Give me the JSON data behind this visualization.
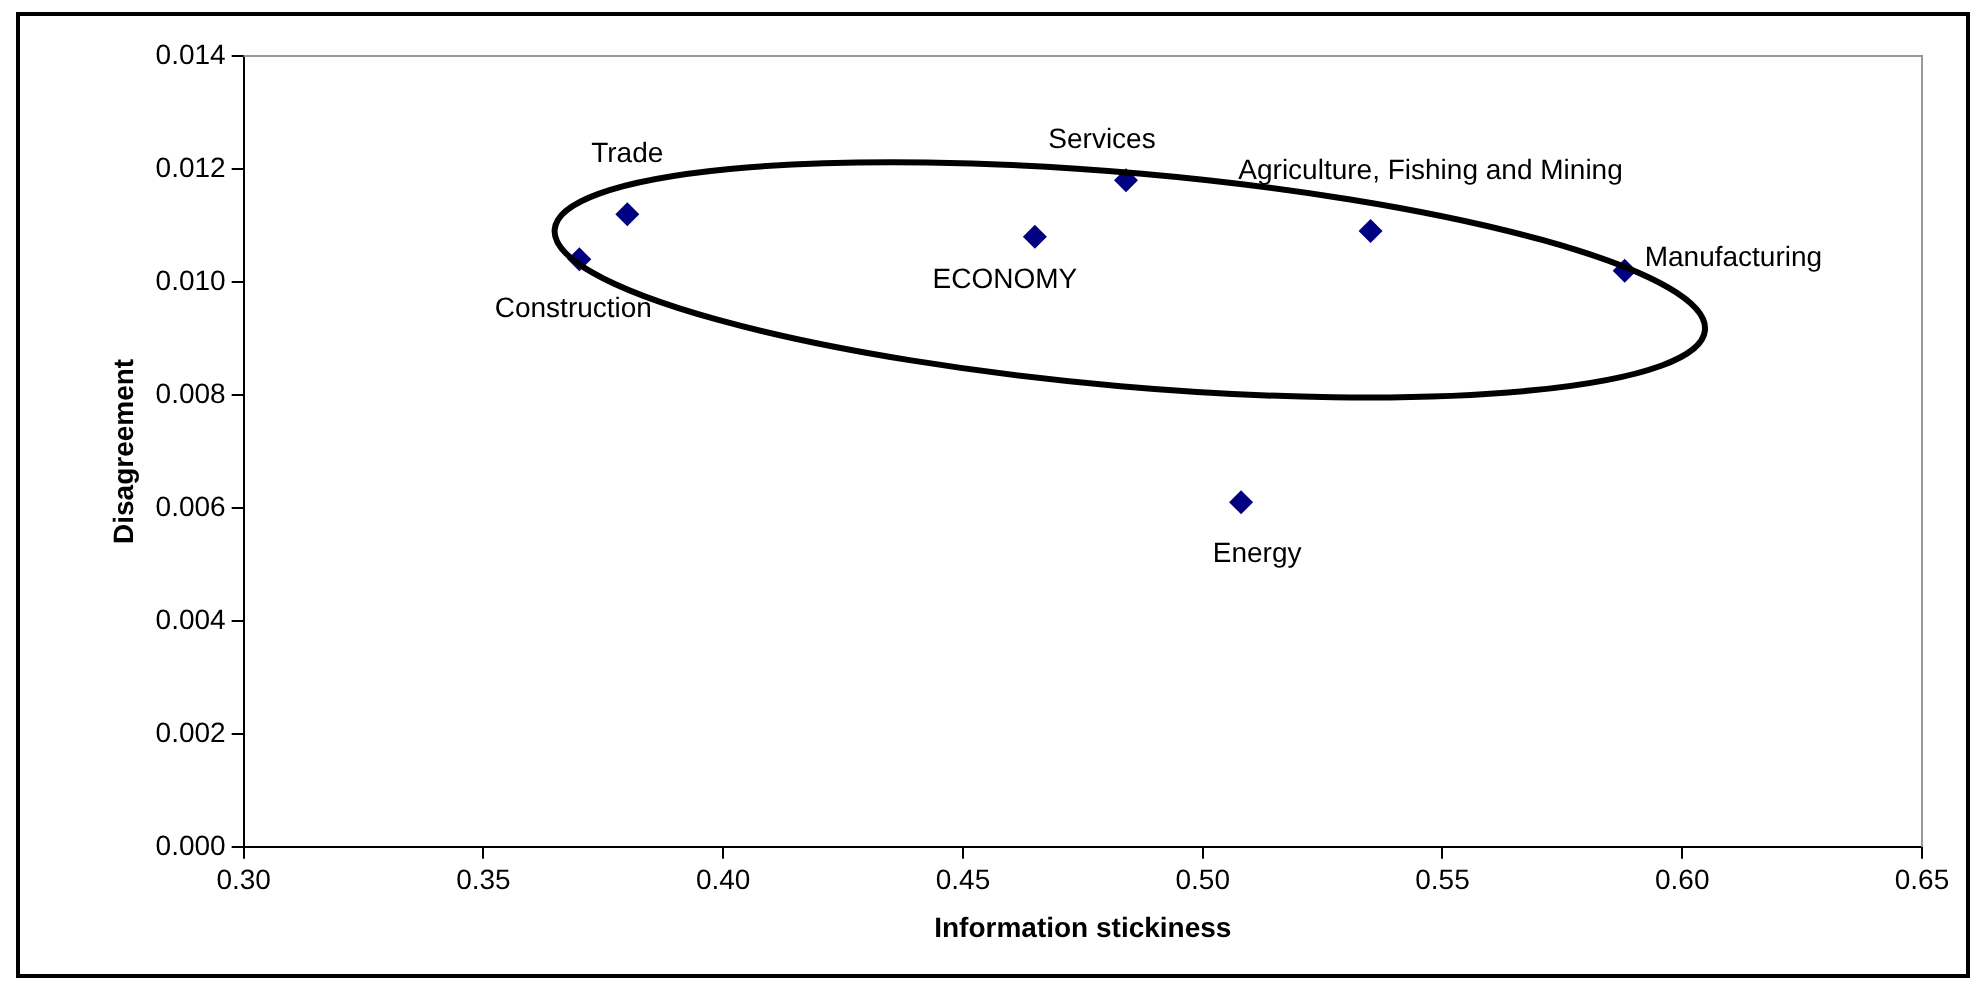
{
  "chart_data": {
    "type": "scatter",
    "xlabel": "Information stickiness",
    "ylabel": "Disagreement",
    "x": [
      0.37,
      0.38,
      0.465,
      0.484,
      0.535,
      0.588,
      0.508
    ],
    "series": [
      {
        "color": "#000080",
        "values": [
          0.0104,
          0.0112,
          0.0108,
          0.0118,
          0.0109,
          0.0102,
          0.0061
        ]
      }
    ],
    "marker": "diamond",
    "grid": false,
    "legend": false,
    "xlim": [
      0.3,
      0.65
    ],
    "xticks": [
      {
        "value": 0.3,
        "label": "0.30"
      },
      {
        "value": 0.35,
        "label": "0.35"
      },
      {
        "value": 0.4,
        "label": "0.40"
      },
      {
        "value": 0.45,
        "label": "0.45"
      },
      {
        "value": 0.5,
        "label": "0.50"
      },
      {
        "value": 0.55,
        "label": "0.55"
      },
      {
        "value": 0.6,
        "label": "0.60"
      },
      {
        "value": 0.65,
        "label": "0.65"
      }
    ],
    "ylim": [
      0,
      0.014
    ],
    "yticks": [
      {
        "value": 0,
        "label": "0.000"
      },
      {
        "value": 0.002,
        "label": "0.002"
      },
      {
        "value": 0.004,
        "label": "0.004"
      },
      {
        "value": 0.006,
        "label": "0.006"
      },
      {
        "value": 0.008,
        "label": "0.008"
      },
      {
        "value": 0.01,
        "label": "0.010"
      },
      {
        "value": 0.012,
        "label": "0.012"
      },
      {
        "value": 0.014,
        "label": "0.014"
      }
    ],
    "annotations": [
      {
        "text": "Construction",
        "x": 0.37,
        "y": 0.0104
      },
      {
        "text": "Trade",
        "x": 0.38,
        "y": 0.0112
      },
      {
        "text": "ECONOMY",
        "x": 0.465,
        "y": 0.0108
      },
      {
        "text": "Services",
        "x": 0.484,
        "y": 0.0118
      },
      {
        "text": "Agriculture, Fishing and Mining",
        "x": 0.535,
        "y": 0.0109
      },
      {
        "text": "Manufacturing",
        "x": 0.588,
        "y": 0.0102
      },
      {
        "text": "Energy",
        "x": 0.508,
        "y": 0.0061
      }
    ]
  }
}
